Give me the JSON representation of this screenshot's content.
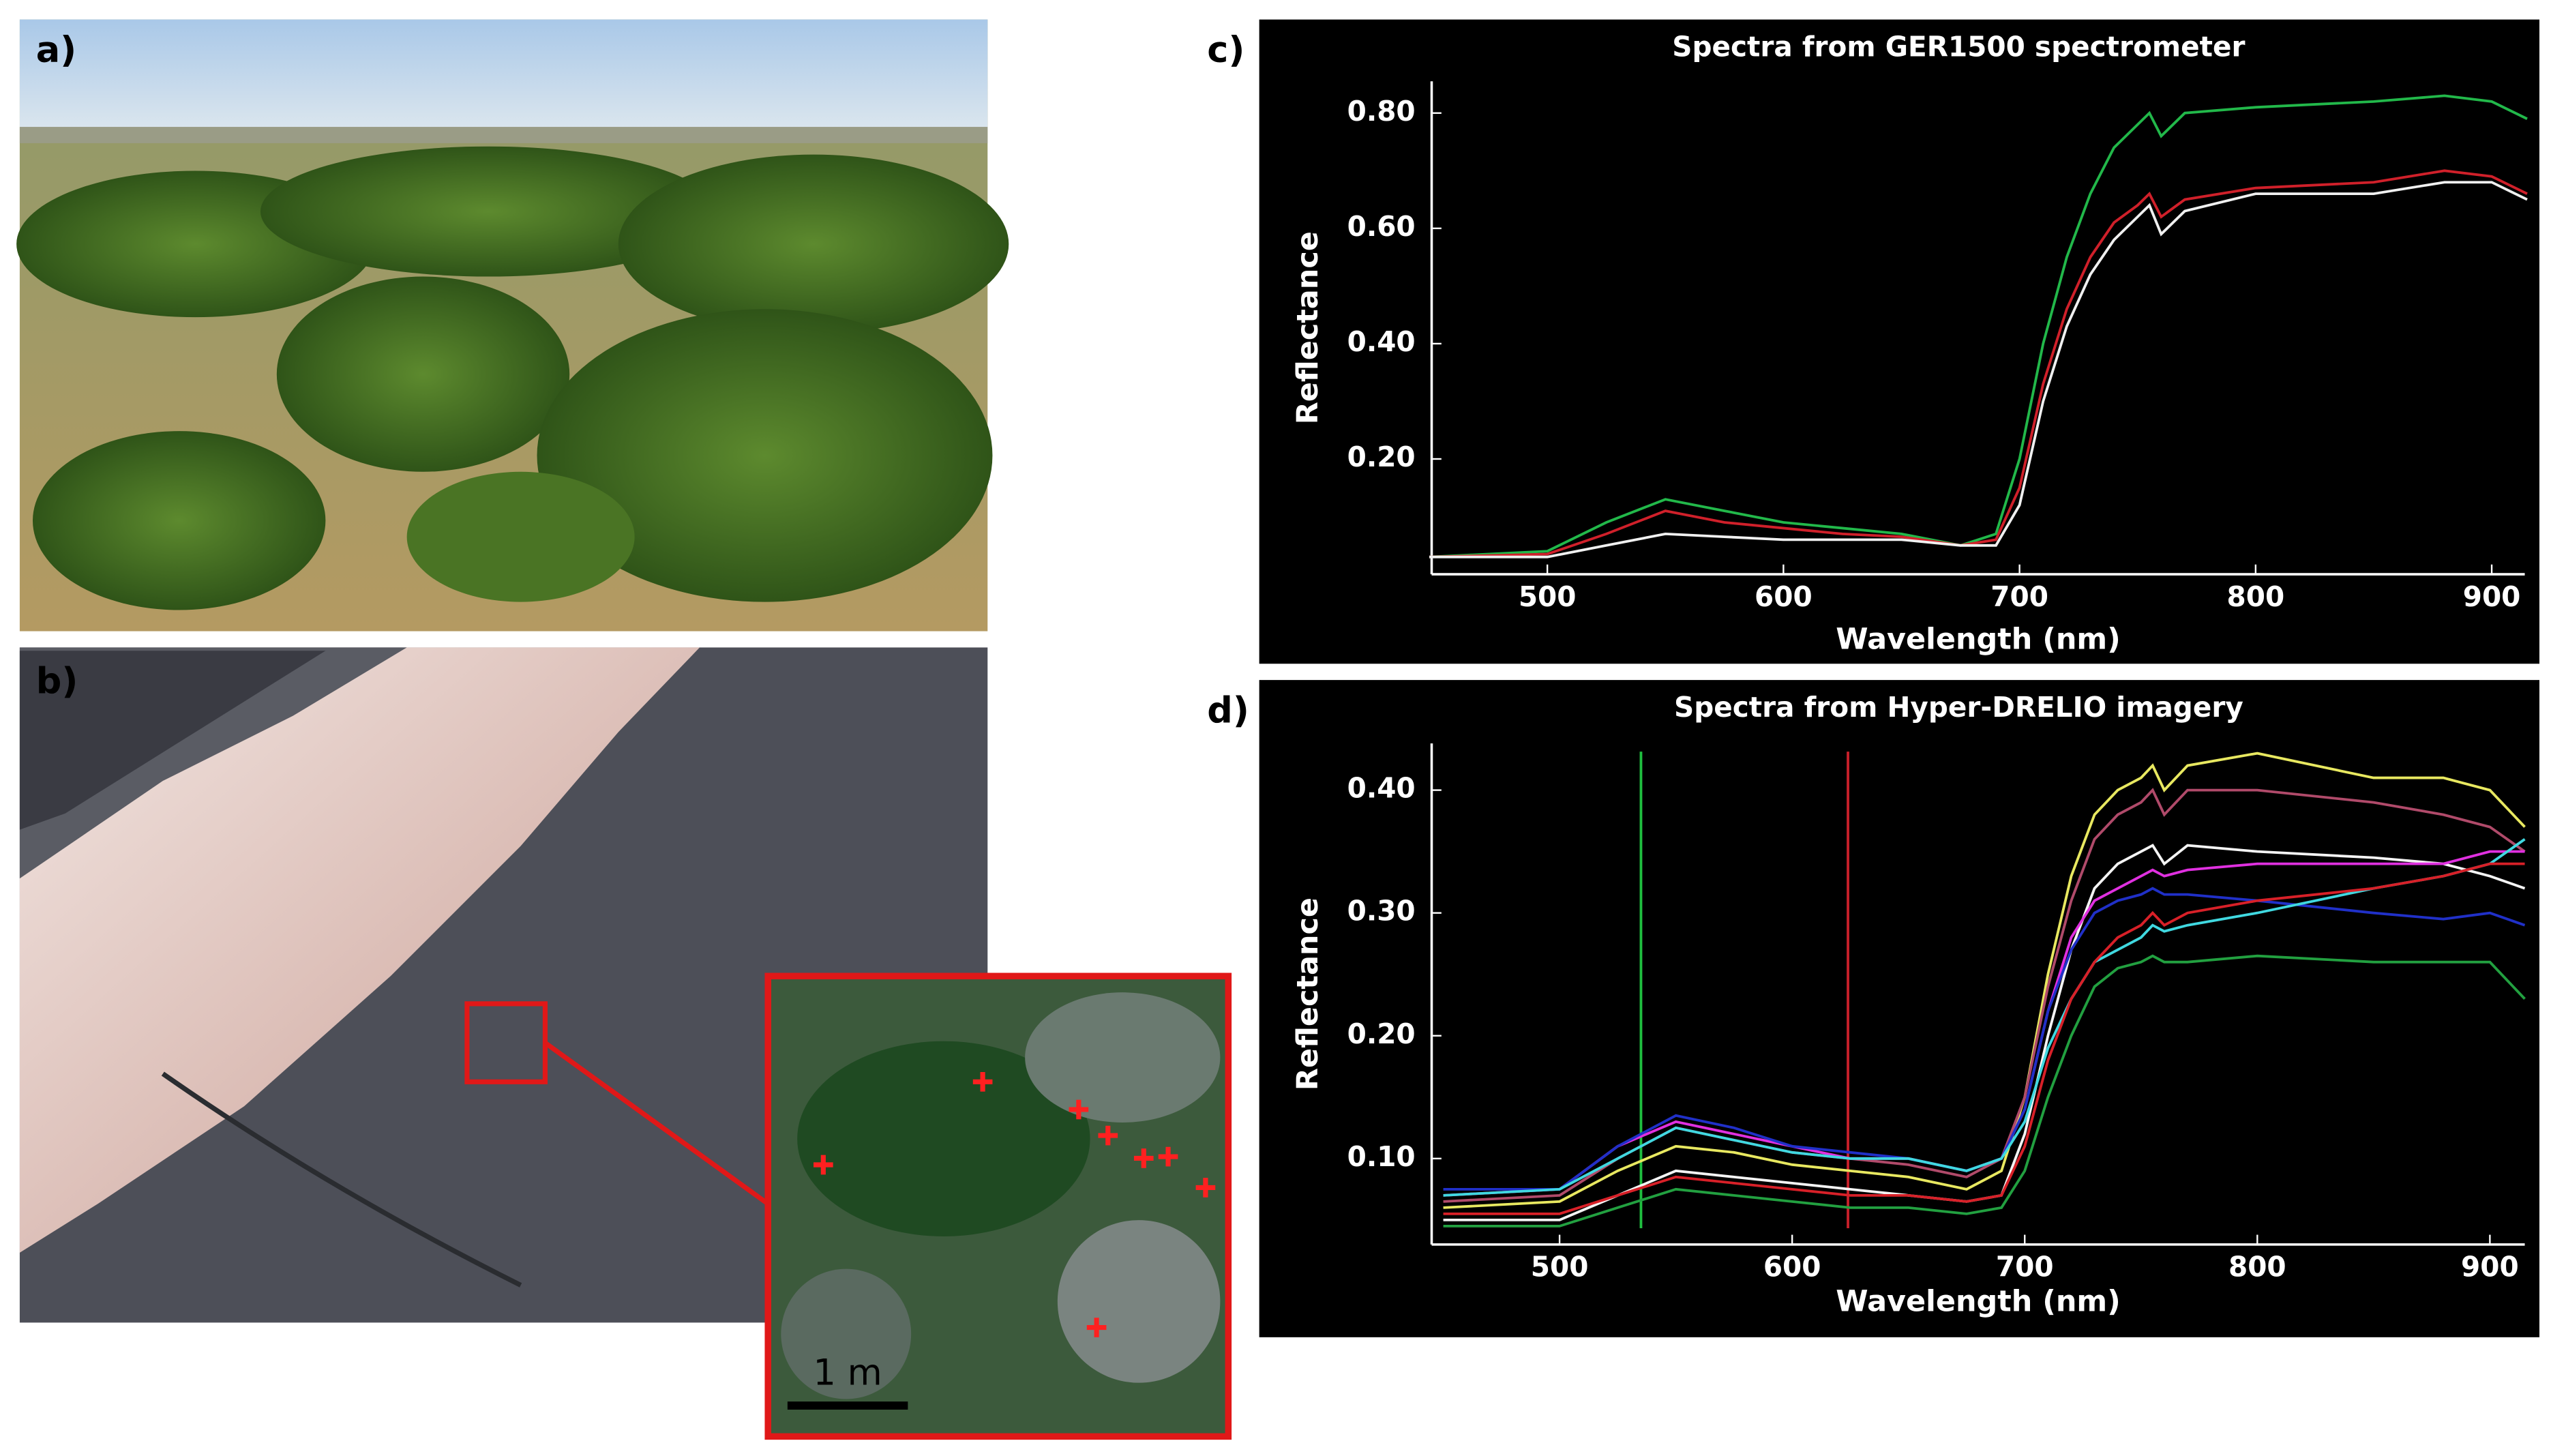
{
  "labels": [
    "a)",
    "b)",
    "c)",
    "d)"
  ],
  "scale_bar": "1 m",
  "chart_data": [
    {
      "type": "line",
      "title": "Spectra from GER1500 spectrometer",
      "x_label": "Wavelength (nm)",
      "y_label": "Reflectance",
      "x": [
        450,
        500,
        525,
        550,
        575,
        600,
        625,
        650,
        675,
        690,
        700,
        710,
        720,
        730,
        740,
        750,
        755,
        760,
        770,
        800,
        850,
        880,
        900,
        915
      ],
      "xlim": [
        451,
        914
      ],
      "ylim": [
        0,
        0.855
      ],
      "xticks": [
        500,
        600,
        700,
        800,
        900
      ],
      "yticks": [
        {
          "value": 0.2,
          "label": "0.20"
        },
        {
          "value": 0.4,
          "label": "0.40"
        },
        {
          "value": 0.6,
          "label": "0.60"
        },
        {
          "value": 0.8,
          "label": "0.80"
        }
      ],
      "grid": false,
      "series": [
        {
          "color": "#22b84a",
          "values": [
            0.03,
            0.04,
            0.09,
            0.13,
            0.11,
            0.09,
            0.08,
            0.07,
            0.05,
            0.07,
            0.2,
            0.4,
            0.55,
            0.66,
            0.74,
            0.78,
            0.8,
            0.76,
            0.8,
            0.81,
            0.82,
            0.83,
            0.82,
            0.79
          ]
        },
        {
          "color": "#d0202a",
          "values": [
            0.03,
            0.035,
            0.07,
            0.11,
            0.09,
            0.08,
            0.07,
            0.065,
            0.05,
            0.06,
            0.15,
            0.33,
            0.46,
            0.55,
            0.61,
            0.64,
            0.66,
            0.62,
            0.65,
            0.67,
            0.68,
            0.7,
            0.69,
            0.66
          ]
        },
        {
          "color": "#f0f0f0",
          "values": [
            0.03,
            0.03,
            0.05,
            0.07,
            0.065,
            0.06,
            0.06,
            0.06,
            0.05,
            0.05,
            0.12,
            0.3,
            0.43,
            0.52,
            0.58,
            0.62,
            0.64,
            0.59,
            0.63,
            0.66,
            0.66,
            0.68,
            0.68,
            0.65
          ]
        }
      ]
    },
    {
      "type": "line",
      "title": "Spectra from Hyper-DRELIO imagery",
      "x_label": "Wavelength (nm)",
      "y_label": "Reflectance",
      "x": [
        450,
        500,
        525,
        550,
        575,
        600,
        625,
        650,
        675,
        690,
        700,
        710,
        720,
        730,
        740,
        750,
        755,
        760,
        770,
        800,
        850,
        880,
        900,
        915
      ],
      "xlim": [
        445,
        915
      ],
      "ylim": [
        0.03,
        0.438
      ],
      "xticks": [
        500,
        600,
        700,
        800,
        900
      ],
      "yticks": [
        {
          "value": 0.1,
          "label": "0.10"
        },
        {
          "value": 0.2,
          "label": "0.20"
        },
        {
          "value": 0.3,
          "label": "0.30"
        },
        {
          "value": 0.4,
          "label": "0.40"
        }
      ],
      "grid": false,
      "vlines": [
        {
          "x": 535,
          "color": "#1fbf3f"
        },
        {
          "x": 624,
          "color": "#c8202a"
        }
      ],
      "series": [
        {
          "color": "#e8e860",
          "values": [
            0.06,
            0.065,
            0.09,
            0.11,
            0.105,
            0.095,
            0.09,
            0.085,
            0.075,
            0.09,
            0.15,
            0.25,
            0.33,
            0.38,
            0.4,
            0.41,
            0.42,
            0.4,
            0.42,
            0.43,
            0.41,
            0.41,
            0.4,
            0.37
          ]
        },
        {
          "color": "#b04a6a",
          "values": [
            0.065,
            0.07,
            0.1,
            0.125,
            0.115,
            0.105,
            0.1,
            0.095,
            0.085,
            0.1,
            0.15,
            0.24,
            0.31,
            0.36,
            0.38,
            0.39,
            0.4,
            0.38,
            0.4,
            0.4,
            0.39,
            0.38,
            0.37,
            0.35
          ]
        },
        {
          "color": "#f4f4f4",
          "values": [
            0.05,
            0.05,
            0.07,
            0.09,
            0.085,
            0.08,
            0.075,
            0.07,
            0.065,
            0.07,
            0.12,
            0.2,
            0.27,
            0.32,
            0.34,
            0.35,
            0.355,
            0.34,
            0.355,
            0.35,
            0.345,
            0.34,
            0.33,
            0.32
          ]
        },
        {
          "color": "#e030e0",
          "values": [
            0.07,
            0.075,
            0.11,
            0.13,
            0.12,
            0.11,
            0.1,
            0.1,
            0.09,
            0.1,
            0.14,
            0.22,
            0.28,
            0.31,
            0.32,
            0.33,
            0.335,
            0.33,
            0.335,
            0.34,
            0.34,
            0.34,
            0.35,
            0.35
          ]
        },
        {
          "color": "#2030c8",
          "values": [
            0.075,
            0.075,
            0.11,
            0.135,
            0.125,
            0.11,
            0.105,
            0.1,
            0.09,
            0.1,
            0.14,
            0.22,
            0.27,
            0.3,
            0.31,
            0.315,
            0.32,
            0.315,
            0.315,
            0.31,
            0.3,
            0.295,
            0.3,
            0.29
          ]
        },
        {
          "color": "#40d8e0",
          "values": [
            0.07,
            0.075,
            0.1,
            0.125,
            0.115,
            0.105,
            0.1,
            0.1,
            0.09,
            0.1,
            0.13,
            0.19,
            0.23,
            0.26,
            0.27,
            0.28,
            0.29,
            0.285,
            0.29,
            0.3,
            0.32,
            0.33,
            0.34,
            0.36
          ]
        },
        {
          "color": "#d82028",
          "values": [
            0.055,
            0.055,
            0.07,
            0.085,
            0.08,
            0.075,
            0.07,
            0.07,
            0.065,
            0.07,
            0.11,
            0.18,
            0.23,
            0.26,
            0.28,
            0.29,
            0.3,
            0.29,
            0.3,
            0.31,
            0.32,
            0.33,
            0.34,
            0.34
          ]
        },
        {
          "color": "#22a040",
          "values": [
            0.045,
            0.045,
            0.06,
            0.075,
            0.07,
            0.065,
            0.06,
            0.06,
            0.055,
            0.06,
            0.09,
            0.15,
            0.2,
            0.24,
            0.255,
            0.26,
            0.265,
            0.26,
            0.26,
            0.265,
            0.26,
            0.26,
            0.26,
            0.23
          ]
        }
      ]
    }
  ]
}
